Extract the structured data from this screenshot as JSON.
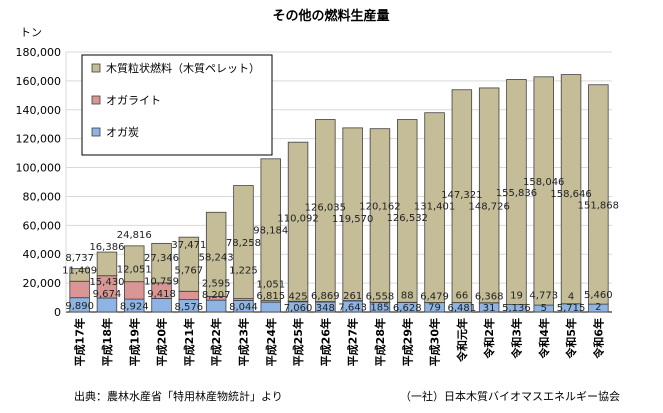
{
  "chart_data": {
    "type": "bar",
    "stacked": true,
    "title": "その他の燃料生産量",
    "ylabel": "トン",
    "ylim": [
      0,
      180000
    ],
    "yticks": [
      0,
      20000,
      40000,
      60000,
      80000,
      100000,
      120000,
      140000,
      160000,
      180000
    ],
    "ytick_labels": [
      "0",
      "20,000",
      "40,000",
      "60,000",
      "80,000",
      "100,000",
      "120,000",
      "140,000",
      "160,000",
      "180,000"
    ],
    "grid": true,
    "legend_position": "top-left",
    "categories": [
      "平成17年",
      "平成18年",
      "平成19年",
      "平成20年",
      "平成21年",
      "平成22年",
      "平成23年",
      "平成24年",
      "平成25年",
      "平成26年",
      "平成27年",
      "平成28年",
      "平成29年",
      "平成30年",
      "令和元年",
      "令和2年",
      "令和3年",
      "令和4年",
      "令和5年",
      "令和6年"
    ],
    "series": [
      {
        "name": "オガ炭",
        "color": "#8db4e2",
        "values": [
          9890,
          9674,
          8924,
          9418,
          8576,
          8207,
          8044,
          6815,
          7060,
          6869,
          7643,
          6558,
          6628,
          6479,
          6481,
          6368,
          5136,
          4773,
          5715,
          5460
        ]
      },
      {
        "name": "オガライト",
        "color": "#da9694",
        "values": [
          11409,
          15430,
          12051,
          10759,
          5767,
          2595,
          1225,
          1051,
          425,
          348,
          261,
          185,
          88,
          79,
          66,
          31,
          19,
          5,
          4,
          2
        ]
      },
      {
        "name": "木質粒状燃料（木質ペレット）",
        "color": "#c4bd97",
        "values": [
          8737,
          16386,
          24816,
          27346,
          37471,
          58243,
          78258,
          98184,
          110092,
          126035,
          119570,
          120162,
          126532,
          131401,
          147321,
          148726,
          155836,
          158046,
          158646,
          151868
        ]
      }
    ],
    "legend_order": [
      2,
      1,
      0
    ]
  },
  "footer": {
    "source": "出典：農林水産省「特用林産物統計」より",
    "credit": "（一社）日本木質バイオマスエネルギー協会"
  }
}
